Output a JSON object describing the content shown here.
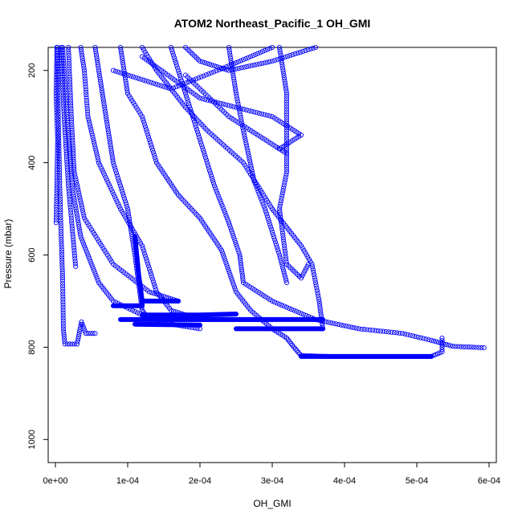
{
  "chart_data": {
    "type": "scatter",
    "title": "ATOM2 Northeast_Pacific_1 OH_GMI",
    "xlabel": "OH_GMI",
    "ylabel": "Pressure (mbar)",
    "xlim": [
      -1e-05,
      0.00061
    ],
    "ylim": [
      1050,
      150
    ],
    "y_reversed": true,
    "x_ticks": [
      0,
      0.0001,
      0.0002,
      0.0003,
      0.0004,
      0.0005,
      0.0006
    ],
    "x_tick_labels": [
      "0e+00",
      "1e-04",
      "2e-04",
      "3e-04",
      "4e-04",
      "5e-04",
      "6e-04"
    ],
    "y_ticks": [
      200,
      400,
      600,
      800,
      1000
    ],
    "y_tick_labels": [
      "200",
      "400",
      "600",
      "800",
      "1000"
    ],
    "grid": false,
    "legend": "none",
    "marker": "open-circle",
    "color": "#0000ff",
    "series": [
      {
        "points": [
          [
            2e-06,
            150
          ],
          [
            1e-06,
            250
          ],
          [
            3e-06,
            350
          ],
          [
            2e-06,
            450
          ],
          [
            1e-06,
            530
          ]
        ]
      },
      {
        "points": [
          [
            3e-06,
            150
          ],
          [
            4e-06,
            300
          ],
          [
            6e-06,
            450
          ],
          [
            8e-06,
            560
          ],
          [
            1e-05,
            650
          ],
          [
            1.1e-05,
            760
          ],
          [
            1.3e-05,
            793
          ],
          [
            3e-05,
            793
          ],
          [
            3.6e-05,
            745
          ],
          [
            4.2e-05,
            770
          ],
          [
            5.5e-05,
            770
          ]
        ]
      },
      {
        "points": [
          [
            8e-06,
            150
          ],
          [
            1.2e-05,
            300
          ],
          [
            1.8e-05,
            450
          ],
          [
            2.2e-05,
            520
          ],
          [
            2.8e-05,
            625
          ]
        ]
      },
      {
        "points": [
          [
            1e-05,
            150
          ],
          [
            1.6e-05,
            300
          ],
          [
            2.4e-05,
            460
          ],
          [
            3.5e-05,
            560
          ],
          [
            6e-05,
            660
          ],
          [
            8e-05,
            700
          ],
          [
            0.00012,
            730
          ],
          [
            0.00016,
            750
          ],
          [
            0.0002,
            760
          ]
        ]
      },
      {
        "points": [
          [
            1.8e-05,
            150
          ],
          [
            2.2e-05,
            300
          ],
          [
            2.6e-05,
            420
          ],
          [
            4e-05,
            520
          ],
          [
            8e-05,
            620
          ],
          [
            0.00013,
            680
          ],
          [
            0.00017,
            700
          ]
        ]
      },
      {
        "points": [
          [
            3.5e-05,
            150
          ],
          [
            4e-05,
            200
          ],
          [
            4.5e-05,
            300
          ],
          [
            6e-05,
            400
          ],
          [
            9e-05,
            500
          ],
          [
            0.00012,
            580
          ],
          [
            0.00014,
            680
          ],
          [
            0.00016,
            720
          ],
          [
            0.0002,
            740
          ]
        ]
      },
      {
        "points": [
          [
            5.5e-05,
            150
          ],
          [
            6e-05,
            200
          ],
          [
            7e-05,
            300
          ],
          [
            8e-05,
            400
          ],
          [
            0.0001,
            500
          ],
          [
            0.00011,
            600
          ],
          [
            0.00012,
            720
          ],
          [
            0.00013,
            740
          ],
          [
            0.0002,
            740
          ],
          [
            0.0003,
            740
          ]
        ]
      },
      {
        "points": [
          [
            9e-05,
            150
          ],
          [
            0.0001,
            250
          ],
          [
            0.00012,
            300
          ],
          [
            0.00014,
            400
          ],
          [
            0.00017,
            470
          ],
          [
            0.0002,
            520
          ],
          [
            0.00023,
            590
          ],
          [
            0.00025,
            680
          ],
          [
            0.00027,
            720
          ],
          [
            0.0003,
            760
          ],
          [
            0.00032,
            780
          ],
          [
            0.00033,
            800
          ],
          [
            0.00034,
            818
          ],
          [
            0.00038,
            820
          ],
          [
            0.00045,
            820
          ],
          [
            0.00052,
            820
          ],
          [
            0.000535,
            810
          ],
          [
            0.000535,
            780
          ]
        ]
      },
      {
        "points": [
          [
            0.00012,
            150
          ],
          [
            0.00014,
            200
          ],
          [
            0.00018,
            280
          ],
          [
            0.00021,
            330
          ],
          [
            0.00026,
            400
          ],
          [
            0.0003,
            500
          ],
          [
            0.00034,
            580
          ],
          [
            0.000355,
            620
          ],
          [
            0.000365,
            700
          ],
          [
            0.00037,
            760
          ]
        ]
      },
      {
        "points": [
          [
            0.00016,
            150
          ],
          [
            0.00018,
            250
          ],
          [
            0.0002,
            350
          ],
          [
            0.00022,
            450
          ],
          [
            0.00024,
            530
          ],
          [
            0.000255,
            600
          ],
          [
            0.00026,
            660
          ],
          [
            0.0003,
            700
          ],
          [
            0.00036,
            740
          ],
          [
            0.00042,
            760
          ],
          [
            0.00048,
            770
          ],
          [
            0.00052,
            785
          ],
          [
            0.00055,
            798
          ],
          [
            0.000593,
            801
          ]
        ]
      },
      {
        "points": [
          [
            0.00024,
            150
          ],
          [
            0.00025,
            250
          ],
          [
            0.00026,
            330
          ],
          [
            0.000275,
            440
          ],
          [
            0.00029,
            500
          ],
          [
            0.0003,
            550
          ],
          [
            0.00031,
            600
          ],
          [
            0.00032,
            660
          ]
        ]
      },
      {
        "points": [
          [
            0.00031,
            150
          ],
          [
            0.00032,
            250
          ],
          [
            0.00032,
            330
          ],
          [
            0.00032,
            420
          ],
          [
            0.00031,
            500
          ],
          [
            0.00032,
            620
          ],
          [
            0.00034,
            650
          ],
          [
            0.00035,
            620
          ]
        ]
      },
      {
        "points": [
          [
            0.00018,
            150
          ],
          [
            0.0002,
            180
          ],
          [
            0.00024,
            200
          ],
          [
            0.0003,
            180
          ],
          [
            0.00036,
            150
          ]
        ]
      },
      {
        "points": [
          [
            0.00012,
            170
          ],
          [
            0.0002,
            260
          ],
          [
            0.0003,
            300
          ],
          [
            0.00034,
            340
          ],
          [
            0.00031,
            370
          ]
        ]
      },
      {
        "points": [
          [
            0.00018,
            210
          ],
          [
            0.00024,
            300
          ],
          [
            0.00028,
            340
          ],
          [
            0.00032,
            380
          ]
        ]
      },
      {
        "points": [
          [
            8e-05,
            200
          ],
          [
            0.00016,
            240
          ],
          [
            0.00024,
            190
          ],
          [
            0.0003,
            150
          ]
        ]
      }
    ],
    "thick_segments": [
      {
        "points": [
          [
            8e-05,
            710
          ],
          [
            0.00012,
            710
          ],
          [
            0.00012,
            700
          ],
          [
            0.00017,
            700
          ]
        ]
      },
      {
        "points": [
          [
            9e-05,
            740
          ],
          [
            0.00025,
            740
          ],
          [
            0.0003,
            740
          ],
          [
            0.00037,
            740
          ]
        ]
      },
      {
        "points": [
          [
            0.00025,
            760
          ],
          [
            0.00037,
            760
          ]
        ]
      },
      {
        "points": [
          [
            0.00012,
            730
          ],
          [
            0.0002,
            730
          ],
          [
            0.00025,
            728
          ]
        ]
      },
      {
        "points": [
          [
            0.00011,
            750
          ],
          [
            0.0002,
            752
          ]
        ]
      },
      {
        "points": [
          [
            0.00011,
            560
          ],
          [
            0.000115,
            640
          ],
          [
            0.00012,
            700
          ]
        ]
      },
      {
        "points": [
          [
            0.00034,
            820
          ],
          [
            0.00046,
            820
          ],
          [
            0.00052,
            820
          ]
        ]
      }
    ]
  }
}
